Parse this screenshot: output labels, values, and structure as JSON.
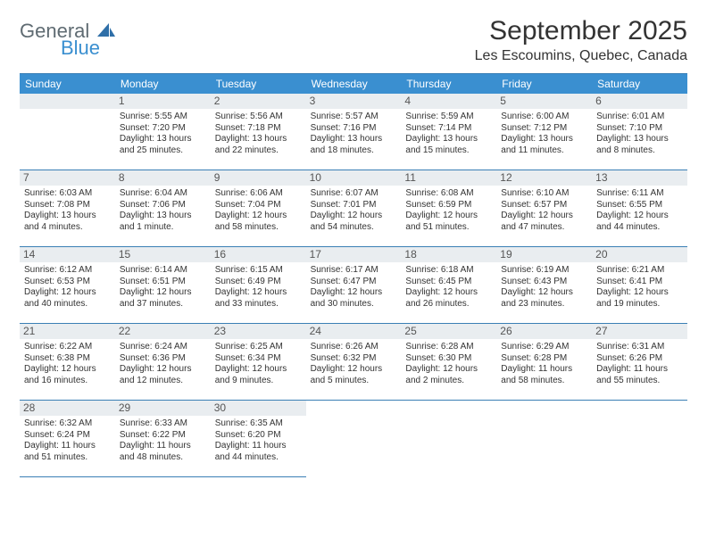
{
  "brand": {
    "word1": "General",
    "word2": "Blue",
    "color_general": "#5f6b72",
    "color_blue": "#3a8fd0",
    "shape_color": "#2f6fa8"
  },
  "header": {
    "month_title": "September 2025",
    "location": "Les Escoumins, Quebec, Canada"
  },
  "colors": {
    "header_bg": "#3a8fd0",
    "header_text": "#ffffff",
    "daynum_bg": "#e9edf0",
    "border": "#3a7fb5",
    "body_text": "#333333",
    "page_bg": "#ffffff"
  },
  "dow": [
    "Sunday",
    "Monday",
    "Tuesday",
    "Wednesday",
    "Thursday",
    "Friday",
    "Saturday"
  ],
  "weeks": [
    [
      {
        "blank": true
      },
      {
        "n": "1",
        "sr": "Sunrise: 5:55 AM",
        "ss": "Sunset: 7:20 PM",
        "d1": "Daylight: 13 hours",
        "d2": "and 25 minutes."
      },
      {
        "n": "2",
        "sr": "Sunrise: 5:56 AM",
        "ss": "Sunset: 7:18 PM",
        "d1": "Daylight: 13 hours",
        "d2": "and 22 minutes."
      },
      {
        "n": "3",
        "sr": "Sunrise: 5:57 AM",
        "ss": "Sunset: 7:16 PM",
        "d1": "Daylight: 13 hours",
        "d2": "and 18 minutes."
      },
      {
        "n": "4",
        "sr": "Sunrise: 5:59 AM",
        "ss": "Sunset: 7:14 PM",
        "d1": "Daylight: 13 hours",
        "d2": "and 15 minutes."
      },
      {
        "n": "5",
        "sr": "Sunrise: 6:00 AM",
        "ss": "Sunset: 7:12 PM",
        "d1": "Daylight: 13 hours",
        "d2": "and 11 minutes."
      },
      {
        "n": "6",
        "sr": "Sunrise: 6:01 AM",
        "ss": "Sunset: 7:10 PM",
        "d1": "Daylight: 13 hours",
        "d2": "and 8 minutes."
      }
    ],
    [
      {
        "n": "7",
        "sr": "Sunrise: 6:03 AM",
        "ss": "Sunset: 7:08 PM",
        "d1": "Daylight: 13 hours",
        "d2": "and 4 minutes."
      },
      {
        "n": "8",
        "sr": "Sunrise: 6:04 AM",
        "ss": "Sunset: 7:06 PM",
        "d1": "Daylight: 13 hours",
        "d2": "and 1 minute."
      },
      {
        "n": "9",
        "sr": "Sunrise: 6:06 AM",
        "ss": "Sunset: 7:04 PM",
        "d1": "Daylight: 12 hours",
        "d2": "and 58 minutes."
      },
      {
        "n": "10",
        "sr": "Sunrise: 6:07 AM",
        "ss": "Sunset: 7:01 PM",
        "d1": "Daylight: 12 hours",
        "d2": "and 54 minutes."
      },
      {
        "n": "11",
        "sr": "Sunrise: 6:08 AM",
        "ss": "Sunset: 6:59 PM",
        "d1": "Daylight: 12 hours",
        "d2": "and 51 minutes."
      },
      {
        "n": "12",
        "sr": "Sunrise: 6:10 AM",
        "ss": "Sunset: 6:57 PM",
        "d1": "Daylight: 12 hours",
        "d2": "and 47 minutes."
      },
      {
        "n": "13",
        "sr": "Sunrise: 6:11 AM",
        "ss": "Sunset: 6:55 PM",
        "d1": "Daylight: 12 hours",
        "d2": "and 44 minutes."
      }
    ],
    [
      {
        "n": "14",
        "sr": "Sunrise: 6:12 AM",
        "ss": "Sunset: 6:53 PM",
        "d1": "Daylight: 12 hours",
        "d2": "and 40 minutes."
      },
      {
        "n": "15",
        "sr": "Sunrise: 6:14 AM",
        "ss": "Sunset: 6:51 PM",
        "d1": "Daylight: 12 hours",
        "d2": "and 37 minutes."
      },
      {
        "n": "16",
        "sr": "Sunrise: 6:15 AM",
        "ss": "Sunset: 6:49 PM",
        "d1": "Daylight: 12 hours",
        "d2": "and 33 minutes."
      },
      {
        "n": "17",
        "sr": "Sunrise: 6:17 AM",
        "ss": "Sunset: 6:47 PM",
        "d1": "Daylight: 12 hours",
        "d2": "and 30 minutes."
      },
      {
        "n": "18",
        "sr": "Sunrise: 6:18 AM",
        "ss": "Sunset: 6:45 PM",
        "d1": "Daylight: 12 hours",
        "d2": "and 26 minutes."
      },
      {
        "n": "19",
        "sr": "Sunrise: 6:19 AM",
        "ss": "Sunset: 6:43 PM",
        "d1": "Daylight: 12 hours",
        "d2": "and 23 minutes."
      },
      {
        "n": "20",
        "sr": "Sunrise: 6:21 AM",
        "ss": "Sunset: 6:41 PM",
        "d1": "Daylight: 12 hours",
        "d2": "and 19 minutes."
      }
    ],
    [
      {
        "n": "21",
        "sr": "Sunrise: 6:22 AM",
        "ss": "Sunset: 6:38 PM",
        "d1": "Daylight: 12 hours",
        "d2": "and 16 minutes."
      },
      {
        "n": "22",
        "sr": "Sunrise: 6:24 AM",
        "ss": "Sunset: 6:36 PM",
        "d1": "Daylight: 12 hours",
        "d2": "and 12 minutes."
      },
      {
        "n": "23",
        "sr": "Sunrise: 6:25 AM",
        "ss": "Sunset: 6:34 PM",
        "d1": "Daylight: 12 hours",
        "d2": "and 9 minutes."
      },
      {
        "n": "24",
        "sr": "Sunrise: 6:26 AM",
        "ss": "Sunset: 6:32 PM",
        "d1": "Daylight: 12 hours",
        "d2": "and 5 minutes."
      },
      {
        "n": "25",
        "sr": "Sunrise: 6:28 AM",
        "ss": "Sunset: 6:30 PM",
        "d1": "Daylight: 12 hours",
        "d2": "and 2 minutes."
      },
      {
        "n": "26",
        "sr": "Sunrise: 6:29 AM",
        "ss": "Sunset: 6:28 PM",
        "d1": "Daylight: 11 hours",
        "d2": "and 58 minutes."
      },
      {
        "n": "27",
        "sr": "Sunrise: 6:31 AM",
        "ss": "Sunset: 6:26 PM",
        "d1": "Daylight: 11 hours",
        "d2": "and 55 minutes."
      }
    ],
    [
      {
        "n": "28",
        "sr": "Sunrise: 6:32 AM",
        "ss": "Sunset: 6:24 PM",
        "d1": "Daylight: 11 hours",
        "d2": "and 51 minutes."
      },
      {
        "n": "29",
        "sr": "Sunrise: 6:33 AM",
        "ss": "Sunset: 6:22 PM",
        "d1": "Daylight: 11 hours",
        "d2": "and 48 minutes."
      },
      {
        "n": "30",
        "sr": "Sunrise: 6:35 AM",
        "ss": "Sunset: 6:20 PM",
        "d1": "Daylight: 11 hours",
        "d2": "and 44 minutes."
      },
      {
        "trailing": true
      },
      {
        "trailing": true
      },
      {
        "trailing": true
      },
      {
        "trailing": true
      }
    ]
  ]
}
